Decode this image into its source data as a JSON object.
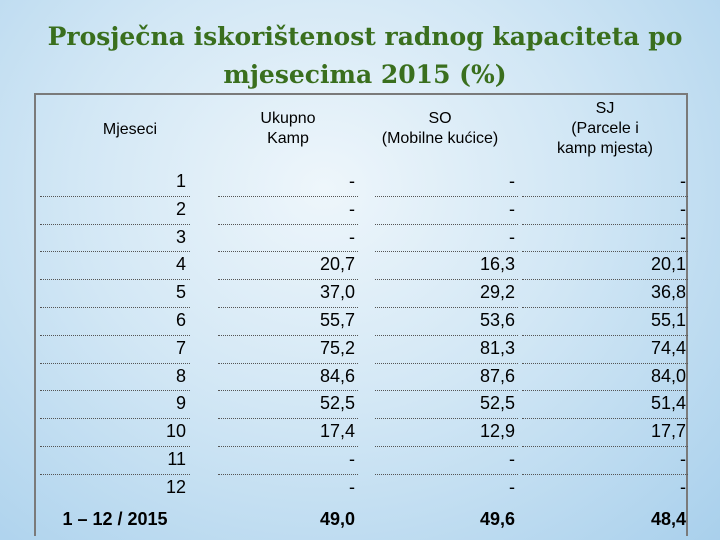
{
  "title": {
    "line1": "Prosječna iskorištenost radnog kapaciteta po",
    "line2": "mjesecima 2015 (%)"
  },
  "columns": {
    "month": "Mjeseci",
    "ukupno_1": "Ukupno",
    "ukupno_2": "Kamp",
    "so_1": "SO",
    "so_2": "(Mobilne kućice)",
    "sj_1": "SJ",
    "sj_2": "(Parcele i",
    "sj_3": "kamp mjesta)"
  },
  "rows": [
    {
      "month": "1",
      "ukupno": "-",
      "so": "-",
      "sj": "-"
    },
    {
      "month": "2",
      "ukupno": "-",
      "so": "-",
      "sj": "-"
    },
    {
      "month": "3",
      "ukupno": "-",
      "so": "-",
      "sj": "-"
    },
    {
      "month": "4",
      "ukupno": "20,7",
      "so": "16,3",
      "sj": "20,1"
    },
    {
      "month": "5",
      "ukupno": "37,0",
      "so": "29,2",
      "sj": "36,8"
    },
    {
      "month": "6",
      "ukupno": "55,7",
      "so": "53,6",
      "sj": "55,1"
    },
    {
      "month": "7",
      "ukupno": "75,2",
      "so": "81,3",
      "sj": "74,4"
    },
    {
      "month": "8",
      "ukupno": "84,6",
      "so": "87,6",
      "sj": "84,0"
    },
    {
      "month": "9",
      "ukupno": "52,5",
      "so": "52,5",
      "sj": "51,4"
    },
    {
      "month": "10",
      "ukupno": "17,4",
      "so": "12,9",
      "sj": "17,7"
    },
    {
      "month": "11",
      "ukupno": "-",
      "so": "-",
      "sj": "-"
    },
    {
      "month": "12",
      "ukupno": "-",
      "so": "-",
      "sj": "-"
    }
  ],
  "total": {
    "month": "1 – 12 / 2015",
    "ukupno": "49,0",
    "so": "49,6",
    "sj": "48,4"
  },
  "colors": {
    "title": "#3a6f1e",
    "background": "#c8e2f4",
    "frame": "#7a7a7a"
  }
}
